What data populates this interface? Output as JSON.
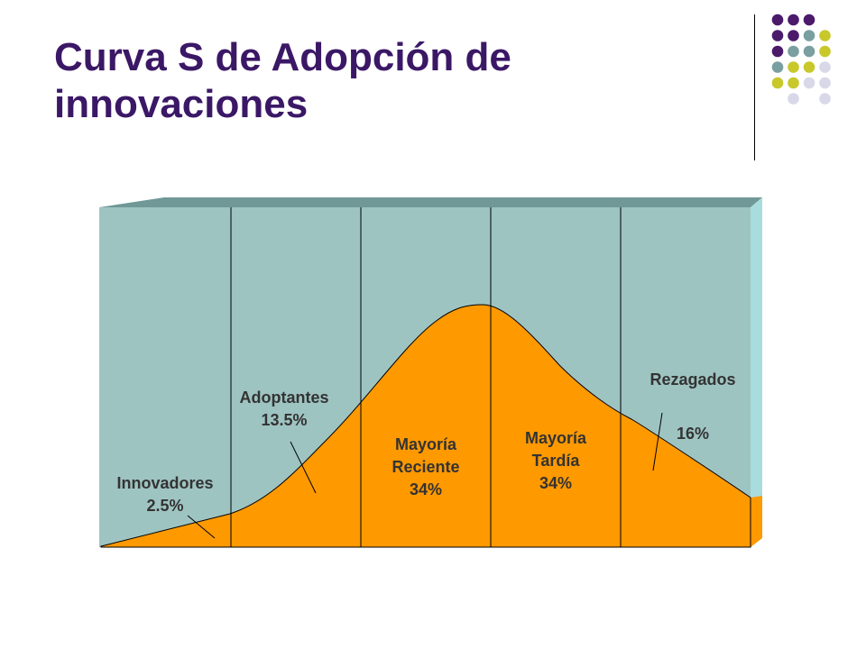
{
  "slide": {
    "title_lines": [
      "Curva S de Adopción de",
      "innovaciones"
    ]
  },
  "colors": {
    "title": "#3b1866",
    "panel_fill": "#9ec4c2",
    "panel_top": "#6f9896",
    "panel_side": "#a9dcdc",
    "curve_fill": "#ff9900",
    "label_text": "#333333",
    "dot_purple": "#4b1a6b",
    "dot_teal": "#7a9fa0",
    "dot_lime": "#c8c82a",
    "dot_lavender": "#d8d8e8"
  },
  "segments": [
    {
      "lines": [
        "Innovadores",
        "2.5%"
      ]
    },
    {
      "lines": [
        "Adoptantes",
        "13.5%"
      ]
    },
    {
      "lines": [
        "Mayoría",
        "Reciente",
        "34%"
      ]
    },
    {
      "lines": [
        "Mayoría",
        "Tardía",
        "34%"
      ]
    },
    {
      "name": "Rezagados",
      "value": "16%"
    }
  ]
}
